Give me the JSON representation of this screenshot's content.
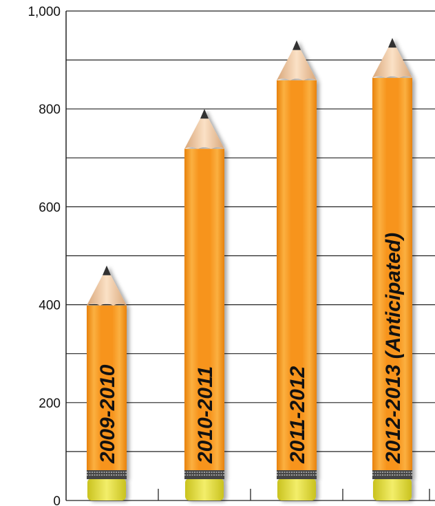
{
  "chart_data": {
    "type": "bar",
    "style": "pencil",
    "categories": [
      "2009-2010",
      "2010-2011",
      "2011-2012",
      "2012-2013 (Anticipated)"
    ],
    "values": [
      480,
      800,
      940,
      945
    ],
    "ylim": [
      0,
      1000
    ],
    "yticks": [
      {
        "value": 0,
        "label": "0"
      },
      {
        "value": 200,
        "label": "200"
      },
      {
        "value": 400,
        "label": "400"
      },
      {
        "value": 600,
        "label": "600"
      },
      {
        "value": 800,
        "label": "800"
      },
      {
        "value": 1000,
        "label": "1,000"
      }
    ],
    "gridlines_every": 100,
    "grid": true,
    "title": "",
    "xlabel": "",
    "ylabel": "",
    "colors": {
      "pencil_body": "#F7941D",
      "pencil_body_light": "#FBB040",
      "pencil_body_dark": "#E8820C",
      "wood": "#F2C9A0",
      "graphite": "#333333",
      "ferrule": "#444444",
      "eraser": "#E9E23A",
      "grid": "#222222"
    }
  }
}
